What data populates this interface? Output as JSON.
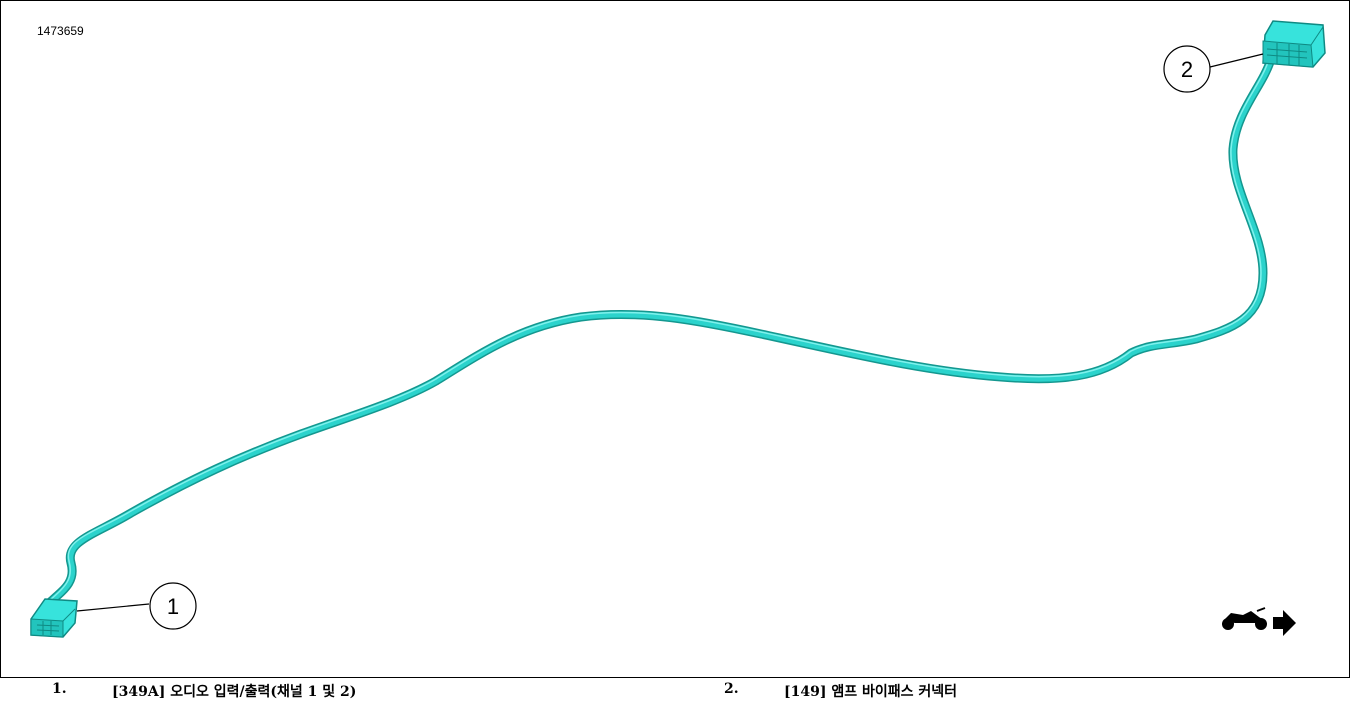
{
  "figure": {
    "id": "1473659"
  },
  "callouts": [
    {
      "number": "1"
    },
    {
      "number": "2"
    }
  ],
  "legend": [
    {
      "number": "1.",
      "text": "[349A] 오디오 입력/출력(채널 1 및 2)"
    },
    {
      "number": "2.",
      "text": "[149] 앰프 바이패스 커넥터"
    }
  ],
  "icons": {
    "orientation": "motorcycle-forward-icon"
  },
  "colors": {
    "harness": "#2bd3cc",
    "harness_shadow": "#14978f",
    "connector": "#37e3dc",
    "outline": "#000000"
  }
}
